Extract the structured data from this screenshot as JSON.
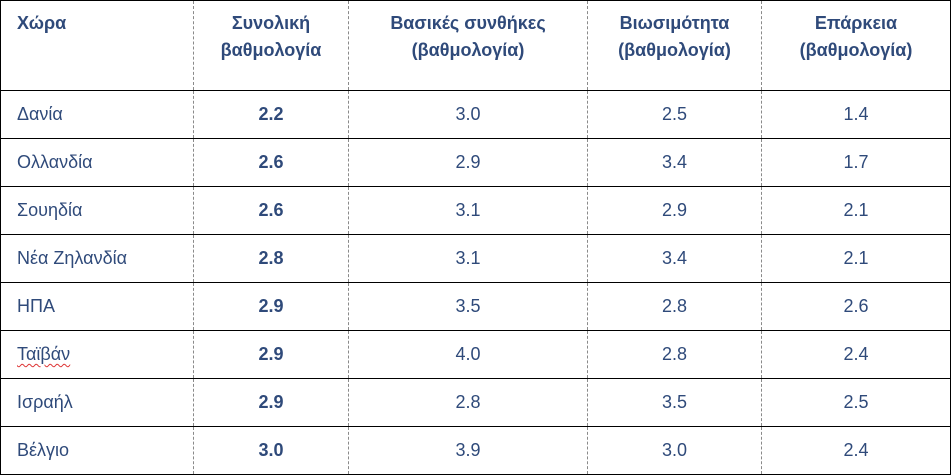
{
  "chart_data": {
    "type": "table",
    "columns": [
      {
        "line1": "Χώρα",
        "line2": ""
      },
      {
        "line1": "Συνολική",
        "line2": "βαθμολογία"
      },
      {
        "line1": "Βασικές συνθήκες",
        "line2": "(βαθμολογία)"
      },
      {
        "line1": "Βιωσιμότητα",
        "line2": "(βαθμολογία)"
      },
      {
        "line1": "Επάρκεια",
        "line2": "(βαθμολογία)"
      }
    ],
    "rows": [
      {
        "country": "Δανία",
        "total": "2.2",
        "basic": "3.0",
        "sustainability": "2.5",
        "adequacy": "1.4"
      },
      {
        "country": "Ολλανδία",
        "total": "2.6",
        "basic": "2.9",
        "sustainability": "3.4",
        "adequacy": "1.7"
      },
      {
        "country": "Σουηδία",
        "total": "2.6",
        "basic": "3.1",
        "sustainability": "2.9",
        "adequacy": "2.1"
      },
      {
        "country": "Νέα Ζηλανδία",
        "total": "2.8",
        "basic": "3.1",
        "sustainability": "3.4",
        "adequacy": "2.1"
      },
      {
        "country": "ΗΠΑ",
        "total": "2.9",
        "basic": "3.5",
        "sustainability": "2.8",
        "adequacy": "2.6"
      },
      {
        "country": "Ταϊβάν",
        "total": "2.9",
        "basic": "4.0",
        "sustainability": "2.8",
        "adequacy": "2.4"
      },
      {
        "country": "Ισραήλ",
        "total": "2.9",
        "basic": "2.8",
        "sustainability": "3.5",
        "adequacy": "2.5"
      },
      {
        "country": "Βέλγιο",
        "total": "3.0",
        "basic": "3.9",
        "sustainability": "3.0",
        "adequacy": "2.4"
      }
    ],
    "styles": {
      "text_color": "#2f4a7a",
      "border_color": "#000000",
      "divider_color": "#8a8a8a",
      "spellcheck_underline_color": "#d33"
    }
  }
}
